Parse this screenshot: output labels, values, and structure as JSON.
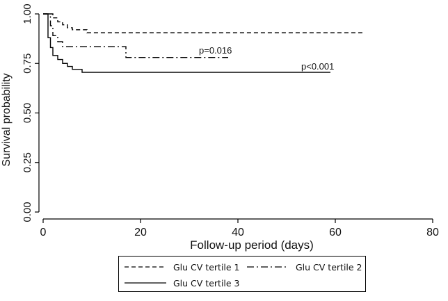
{
  "chart_data": {
    "type": "line",
    "xlabel": "Follow-up period (days)",
    "ylabel": "Survival probability",
    "xlim": [
      0,
      80
    ],
    "ylim": [
      0,
      1
    ],
    "xticks": [
      "0",
      "20",
      "40",
      "60",
      "80"
    ],
    "yticks": [
      "0.00",
      "0.25",
      "0.50",
      "0.75",
      "1.00"
    ],
    "grid": false,
    "legend_position": "bottom",
    "series": [
      {
        "name": "Glu CV tertile 1",
        "style": "dashed",
        "color": "#000000",
        "x": [
          0,
          2,
          3,
          4,
          5,
          6,
          9,
          66
        ],
        "y": [
          1.0,
          0.98,
          0.96,
          0.945,
          0.93,
          0.92,
          0.905,
          0.905
        ]
      },
      {
        "name": "Glu CV tertile 2",
        "style": "dashdot",
        "color": "#000000",
        "x": [
          0,
          1.5,
          2,
          3,
          4,
          17,
          38
        ],
        "y": [
          1.0,
          0.94,
          0.89,
          0.86,
          0.835,
          0.78,
          0.78
        ]
      },
      {
        "name": "Glu CV tertile 3",
        "style": "solid",
        "color": "#000000",
        "x": [
          0,
          1,
          1.5,
          2,
          3,
          4,
          5,
          6,
          8,
          59
        ],
        "y": [
          1.0,
          0.88,
          0.83,
          0.79,
          0.77,
          0.75,
          0.735,
          0.72,
          0.705,
          0.705
        ]
      }
    ],
    "annotations": [
      {
        "text": "p=0.016",
        "x": 32,
        "y": 0.8
      },
      {
        "text": "p<0.001",
        "x": 53,
        "y": 0.72
      }
    ]
  },
  "legend": {
    "items": [
      "Glu CV tertile 1",
      "Glu CV tertile 2",
      "Glu CV tertile 3"
    ]
  }
}
